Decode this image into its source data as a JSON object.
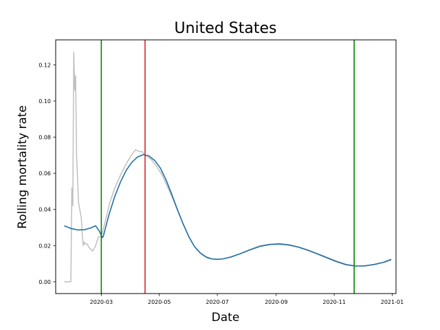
{
  "chart_data": {
    "type": "line",
    "title": "United States",
    "xlabel": "Date",
    "ylabel": "Rolling mortality rate",
    "xlim": [
      "2020-01-13",
      "2021-01-05"
    ],
    "ylim": [
      -0.0065,
      0.1338
    ],
    "x_ticks": [
      "2020-03",
      "2020-05",
      "2020-07",
      "2020-09",
      "2020-11",
      "2021-01"
    ],
    "y_ticks": [
      "0.00",
      "0.02",
      "0.04",
      "0.06",
      "0.08",
      "0.10",
      "0.12"
    ],
    "grid": false,
    "vertical_lines": [
      {
        "date": "2020-03-01",
        "color": "#008000"
      },
      {
        "date": "2020-04-16",
        "color": "#d62728"
      },
      {
        "date": "2020-11-22",
        "color": "#008000"
      }
    ],
    "series": [
      {
        "color": "#bfbfbf",
        "points": [
          [
            "2020-01-22",
            0.0
          ],
          [
            "2020-01-29",
            0.0
          ],
          [
            "2020-01-30",
            0.052
          ],
          [
            "2020-01-31",
            0.042
          ],
          [
            "2020-02-01",
            0.127
          ],
          [
            "2020-02-02",
            0.106
          ],
          [
            "2020-02-03",
            0.114
          ],
          [
            "2020-02-04",
            0.07
          ],
          [
            "2020-02-06",
            0.044
          ],
          [
            "2020-02-09",
            0.035
          ],
          [
            "2020-02-10",
            0.026
          ],
          [
            "2020-02-11",
            0.02
          ],
          [
            "2020-02-12",
            0.022
          ],
          [
            "2020-02-13",
            0.021
          ],
          [
            "2020-02-15",
            0.021
          ],
          [
            "2020-02-17",
            0.019
          ],
          [
            "2020-02-21",
            0.017
          ],
          [
            "2020-02-24",
            0.02
          ],
          [
            "2020-02-27",
            0.025
          ],
          [
            "2020-03-01",
            0.025
          ],
          [
            "2020-03-04",
            0.031
          ],
          [
            "2020-03-10",
            0.044
          ],
          [
            "2020-03-16",
            0.053
          ],
          [
            "2020-03-22",
            0.06
          ],
          [
            "2020-03-28",
            0.066
          ],
          [
            "2020-04-03",
            0.071
          ],
          [
            "2020-04-06",
            0.073
          ],
          [
            "2020-04-10",
            0.072
          ],
          [
            "2020-04-13",
            0.072
          ],
          [
            "2020-04-16",
            0.07
          ],
          [
            "2020-04-22",
            0.068
          ],
          [
            "2020-04-28",
            0.064
          ],
          [
            "2020-05-04",
            0.059
          ],
          [
            "2020-05-10",
            0.052
          ],
          [
            "2020-05-16",
            0.045
          ],
          [
            "2020-05-22",
            0.037
          ],
          [
            "2020-05-28",
            0.03
          ],
          [
            "2020-06-03",
            0.023
          ],
          [
            "2020-06-09",
            0.018
          ],
          [
            "2020-06-15",
            0.015
          ],
          [
            "2020-06-21",
            0.013
          ],
          [
            "2020-06-27",
            0.0125
          ],
          [
            "2020-07-05",
            0.0125
          ],
          [
            "2020-07-15",
            0.0135
          ],
          [
            "2020-07-25",
            0.0155
          ],
          [
            "2020-08-05",
            0.018
          ],
          [
            "2020-08-15",
            0.02
          ],
          [
            "2020-08-25",
            0.0208
          ],
          [
            "2020-09-05",
            0.0212
          ],
          [
            "2020-09-15",
            0.0205
          ],
          [
            "2020-09-25",
            0.0192
          ],
          [
            "2020-10-05",
            0.0175
          ],
          [
            "2020-10-15",
            0.0155
          ],
          [
            "2020-10-25",
            0.0135
          ],
          [
            "2020-11-05",
            0.0112
          ],
          [
            "2020-11-15",
            0.0095
          ],
          [
            "2020-11-25",
            0.0088
          ],
          [
            "2020-12-05",
            0.009
          ],
          [
            "2020-12-15",
            0.0097
          ],
          [
            "2020-12-25",
            0.011
          ],
          [
            "2020-12-31",
            0.012
          ]
        ]
      },
      {
        "color": "#1f6fa6",
        "points": [
          [
            "2020-01-22",
            0.031
          ],
          [
            "2020-01-29",
            0.0295
          ],
          [
            "2020-02-05",
            0.0287
          ],
          [
            "2020-02-12",
            0.0288
          ],
          [
            "2020-02-19",
            0.0298
          ],
          [
            "2020-02-24",
            0.031
          ],
          [
            "2020-02-28",
            0.028
          ],
          [
            "2020-03-02",
            0.0245
          ],
          [
            "2020-03-03",
            0.025
          ],
          [
            "2020-03-09",
            0.037
          ],
          [
            "2020-03-15",
            0.047
          ],
          [
            "2020-03-21",
            0.055
          ],
          [
            "2020-03-27",
            0.0615
          ],
          [
            "2020-04-02",
            0.066
          ],
          [
            "2020-04-08",
            0.069
          ],
          [
            "2020-04-14",
            0.0703
          ],
          [
            "2020-04-20",
            0.0697
          ],
          [
            "2020-04-26",
            0.0672
          ],
          [
            "2020-05-02",
            0.063
          ],
          [
            "2020-05-08",
            0.0565
          ],
          [
            "2020-05-14",
            0.0485
          ],
          [
            "2020-05-20",
            0.04
          ],
          [
            "2020-05-26",
            0.032
          ],
          [
            "2020-06-01",
            0.025
          ],
          [
            "2020-06-07",
            0.0195
          ],
          [
            "2020-06-13",
            0.016
          ],
          [
            "2020-06-19",
            0.0138
          ],
          [
            "2020-06-25",
            0.0127
          ],
          [
            "2020-07-01",
            0.0124
          ],
          [
            "2020-07-07",
            0.0127
          ],
          [
            "2020-07-15",
            0.0137
          ],
          [
            "2020-07-25",
            0.0155
          ],
          [
            "2020-08-05",
            0.0178
          ],
          [
            "2020-08-15",
            0.0196
          ],
          [
            "2020-08-25",
            0.0206
          ],
          [
            "2020-09-04",
            0.0209
          ],
          [
            "2020-09-14",
            0.0204
          ],
          [
            "2020-09-24",
            0.0192
          ],
          [
            "2020-10-04",
            0.0175
          ],
          [
            "2020-10-14",
            0.0155
          ],
          [
            "2020-10-24",
            0.0133
          ],
          [
            "2020-11-03",
            0.0112
          ],
          [
            "2020-11-13",
            0.0095
          ],
          [
            "2020-11-23",
            0.0087
          ],
          [
            "2020-12-03",
            0.0088
          ],
          [
            "2020-12-13",
            0.0096
          ],
          [
            "2020-12-23",
            0.0108
          ],
          [
            "2020-12-31",
            0.0124
          ]
        ]
      }
    ]
  }
}
